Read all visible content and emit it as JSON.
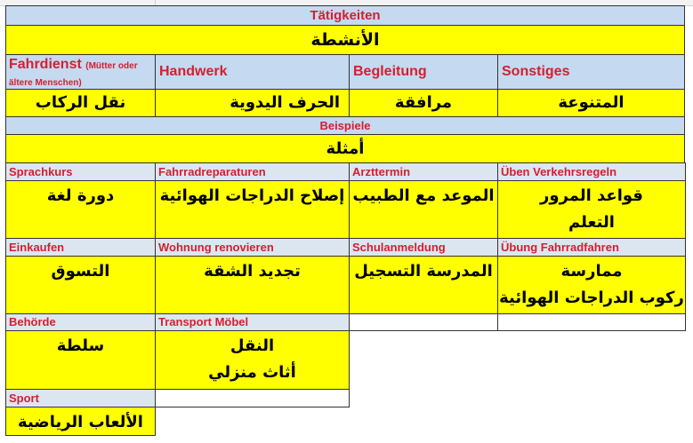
{
  "title_de": "Tätigkeiten",
  "title_ar": "الأنشطة",
  "categories": [
    {
      "de": "Fahrdienst",
      "de_note": "(Mütter oder ältere Menschen)",
      "ar": "نقل الركاب"
    },
    {
      "de": "Handwerk",
      "ar": "الحرف اليدوية"
    },
    {
      "de": "Begleitung",
      "ar": "مرافقة"
    },
    {
      "de": "Sonstiges",
      "ar": "المتنوعة"
    }
  ],
  "examples_de": "Beispiele",
  "examples_ar": "أمثلة",
  "examples": [
    [
      {
        "de": "Sprachkurs",
        "ar": [
          "دورة لغة"
        ]
      },
      {
        "de": "Fahrradreparaturen",
        "ar": [
          "إصلاح الدراجات الهوائية"
        ]
      },
      {
        "de": "Arzttermin",
        "ar": [
          "الموعد مع الطبيب"
        ]
      },
      {
        "de": "Üben Verkehrsregeln",
        "ar": [
          "قواعد المرور",
          "التعلم"
        ]
      }
    ],
    [
      {
        "de": "Einkaufen",
        "ar": [
          "التسوق"
        ]
      },
      {
        "de": "Wohnung renovieren",
        "ar": [
          "تجديد الشقة"
        ]
      },
      {
        "de": "Schulanmeldung",
        "ar": [
          "المدرسة التسجيل"
        ]
      },
      {
        "de": "Übung Fahrradfahren",
        "ar": [
          "ممارسة",
          "ركوب الدراجات الهوائية"
        ]
      }
    ],
    [
      {
        "de": "Behörde",
        "ar": [
          "سلطة"
        ]
      },
      {
        "de": "Transport Möbel",
        "ar": [
          "النقل",
          "أثاث منزلي"
        ]
      }
    ],
    [
      {
        "de": "Sport",
        "ar": [
          "الألعاب الرياضية"
        ]
      }
    ]
  ],
  "colors": {
    "header": "#c5d9f1",
    "label": "#dce6f1",
    "cell": "#ffff00",
    "label_text": "#d3202e"
  }
}
